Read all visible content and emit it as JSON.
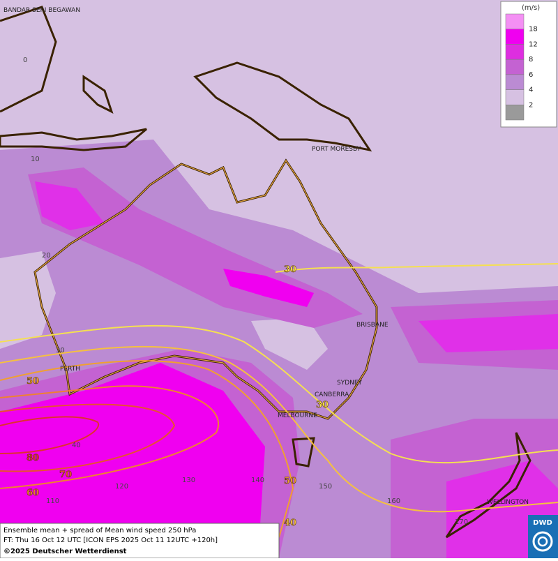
{
  "map": {
    "cities": [
      "BANDAR SERI BEGAWAN",
      "PORT MORESBY",
      "BRISBANE",
      "PERTH",
      "SYDNEY",
      "CANBERRA",
      "MELBOURNE",
      "WELLINGTON"
    ],
    "lat_labels": [
      0,
      10,
      20,
      30,
      40
    ],
    "lon_labels": [
      110,
      120,
      130,
      140,
      150,
      160,
      170
    ],
    "contour_labels": [
      30,
      30,
      50,
      80,
      70,
      60,
      50,
      40
    ]
  },
  "legend": {
    "unit": "(m/s)",
    "ticks": [
      18,
      12,
      8,
      6,
      4,
      2
    ],
    "colors": [
      "#f490f4",
      "#f000f0",
      "#de2ee0",
      "#c462d2",
      "#bb8bd3",
      "#d6c1e2",
      "#9a9a9a"
    ]
  },
  "footer": {
    "line1": "Ensemble mean + spread of Mean wind speed 250 hPa",
    "line2": "FT: Thu 16 Oct 12 UTC [ICON EPS 2025 Oct 11 12UTC +120h]",
    "line3": "©2025 Deutscher Wetterdienst",
    "logo": "DWD"
  }
}
